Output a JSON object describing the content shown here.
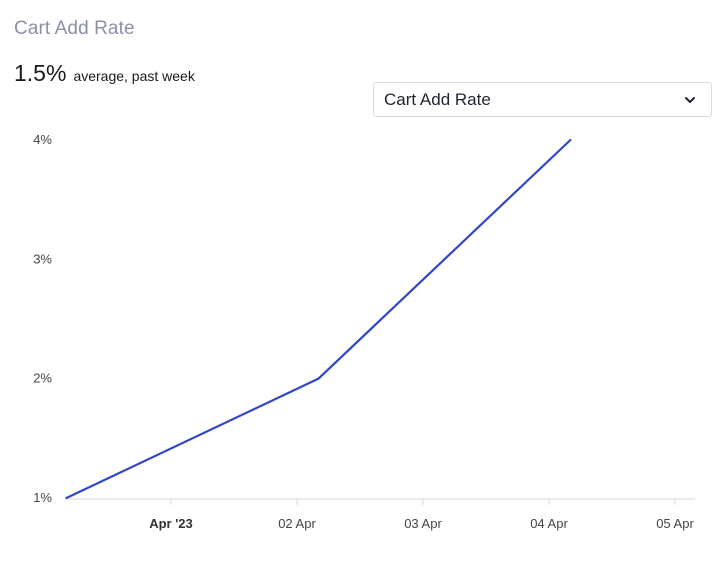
{
  "card": {
    "title": "Cart Add Rate",
    "summary_value": "1.5%",
    "summary_caption": "average, past week"
  },
  "metric_select": {
    "selected": "Cart Add Rate",
    "icon": "chevron-down-icon"
  },
  "colors": {
    "line": "#2e46c8",
    "axis": "#d6d9df",
    "title": "#8a90a6"
  },
  "chart_data": {
    "type": "line",
    "title": "",
    "xlabel": "",
    "ylabel": "",
    "x_tick_labels": [
      {
        "label": "Apr '23",
        "x": 1.0,
        "bold": true
      },
      {
        "label": "02 Apr",
        "x": 2.0,
        "bold": false
      },
      {
        "label": "03 Apr",
        "x": 3.0,
        "bold": false
      },
      {
        "label": "04 Apr",
        "x": 4.0,
        "bold": false
      },
      {
        "label": "05 Apr",
        "x": 5.0,
        "bold": false
      }
    ],
    "y_tick_labels": [
      {
        "label": "1%",
        "y": 1
      },
      {
        "label": "2%",
        "y": 2
      },
      {
        "label": "3%",
        "y": 3
      },
      {
        "label": "4%",
        "y": 4
      }
    ],
    "xlim": [
      0.17,
      5.0
    ],
    "ylim": [
      1,
      4
    ],
    "grid": false,
    "series": [
      {
        "points": [
          {
            "x": 0.17,
            "y": 1.0
          },
          {
            "x": 2.17,
            "y": 2.0
          },
          {
            "x": 4.17,
            "y": 4.0
          }
        ]
      }
    ]
  }
}
